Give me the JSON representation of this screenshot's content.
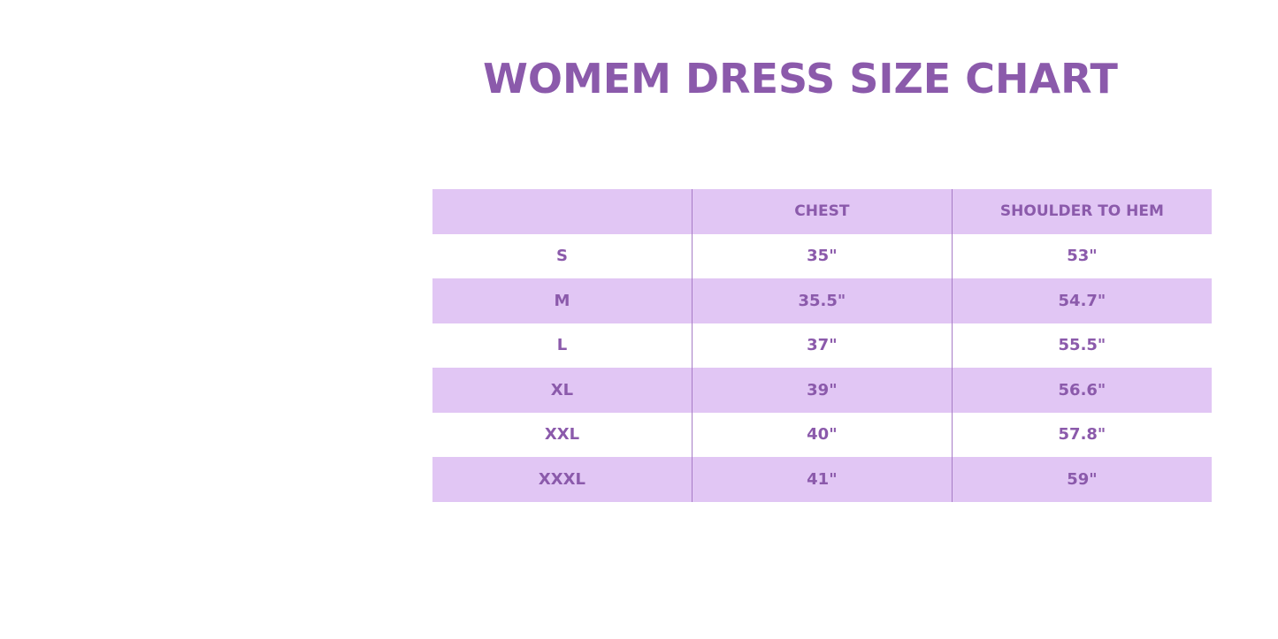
{
  "title": "WOMEM DRESS SIZE CHART",
  "colors": {
    "text": "#8b5aab",
    "row_shade": "#e1c6f4",
    "divider": "#a77cc6"
  },
  "table": {
    "headers": [
      "",
      "CHEST",
      "SHOULDER TO HEM"
    ],
    "rows": [
      [
        "S",
        "35\"",
        "53\""
      ],
      [
        "M",
        "35.5\"",
        "54.7\""
      ],
      [
        "L",
        "37\"",
        "55.5\""
      ],
      [
        "XL",
        "39\"",
        "56.6\""
      ],
      [
        "XXL",
        "40\"",
        "57.8\""
      ],
      [
        "XXXL",
        "41\"",
        "59\""
      ]
    ]
  }
}
